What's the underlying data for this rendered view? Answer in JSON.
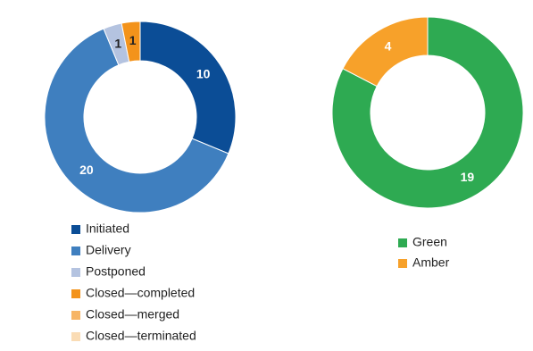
{
  "chart_data": [
    {
      "type": "donut",
      "categories": [
        "Initiated",
        "Delivery",
        "Postponed",
        "Closed—completed",
        "Closed—merged",
        "Closed—terminated"
      ],
      "values": [
        10,
        20,
        1,
        1,
        0,
        0
      ],
      "colors": [
        "#0b4d96",
        "#3f7fbf",
        "#b4c3e0",
        "#f3931b",
        "#f7b565",
        "#fadcb5"
      ]
    },
    {
      "type": "donut",
      "categories": [
        "Green",
        "Amber"
      ],
      "values": [
        19,
        4
      ],
      "colors": [
        "#2eaa52",
        "#f7a12a"
      ]
    }
  ]
}
